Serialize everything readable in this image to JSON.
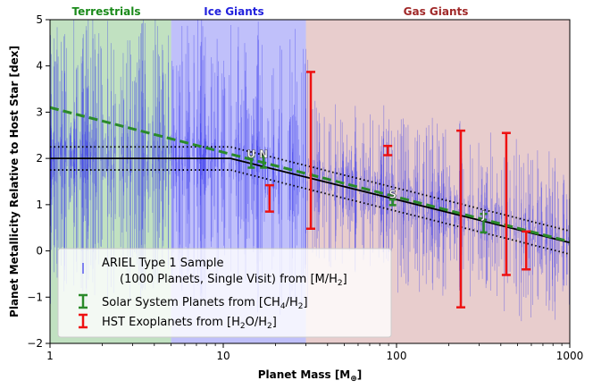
{
  "chart_data": {
    "type": "scatter",
    "xscale": "log",
    "xlim": [
      1,
      1000
    ],
    "ylim": [
      -2,
      5
    ],
    "xlabel_text": "Planet Mass [M",
    "xlabel_unit": "⊕",
    "xlabel_close": "]",
    "ylabel": "Planet Metallicity Relative to Host Star [dex]",
    "xticks": [
      {
        "value": 1,
        "label": "1"
      },
      {
        "value": 10,
        "label": "10"
      },
      {
        "value": 100,
        "label": "100"
      },
      {
        "value": 1000,
        "label": "1000"
      }
    ],
    "yticks": [
      {
        "value": -2,
        "label": "−2"
      },
      {
        "value": -1,
        "label": "−1"
      },
      {
        "value": 0,
        "label": "0"
      },
      {
        "value": 1,
        "label": "1"
      },
      {
        "value": 2,
        "label": "2"
      },
      {
        "value": 3,
        "label": "3"
      },
      {
        "value": 4,
        "label": "4"
      },
      {
        "value": 5,
        "label": "5"
      }
    ],
    "regions": [
      {
        "name": "Terrestrials",
        "x_range": [
          1,
          5
        ],
        "fill": "#8ec98e",
        "label_color": "#1a8a1a"
      },
      {
        "name": "Ice Giants",
        "x_range": [
          5,
          30
        ],
        "fill": "#8c8cf5",
        "label_color": "#2222dd"
      },
      {
        "name": "Gas Giants",
        "x_range": [
          30,
          1000
        ],
        "fill": "#d6a4a4",
        "label_color": "#a02828"
      }
    ],
    "trend_lines": [
      {
        "name": "Mass-metallicity model",
        "style": "solid",
        "color": "#000000",
        "points": [
          [
            1,
            2.0
          ],
          [
            11,
            2.0
          ],
          [
            1000,
            0.18
          ]
        ]
      },
      {
        "name": "Model upper bound",
        "style": "dotted",
        "color": "#000000",
        "points": [
          [
            1,
            2.25
          ],
          [
            11,
            2.25
          ],
          [
            1000,
            0.43
          ]
        ]
      },
      {
        "name": "Model lower bound",
        "style": "dotted",
        "color": "#000000",
        "points": [
          [
            1,
            1.75
          ],
          [
            11,
            1.75
          ],
          [
            1000,
            -0.07
          ]
        ]
      },
      {
        "name": "Solar System fit",
        "style": "dashed",
        "color": "#2a8a2a",
        "points": [
          [
            1,
            3.1
          ],
          [
            1000,
            0.2
          ]
        ]
      }
    ],
    "ariel_sample": {
      "name": "ARIEL Type 1 Sample",
      "count": 1000,
      "color": "#3333ee",
      "x_range": [
        1,
        1000
      ],
      "center_model": "Mass-metallicity model"
    },
    "series": [
      {
        "name": "Solar System Planets from [CH4/H2]",
        "color": "#2a8a2a",
        "points": [
          {
            "label": "U",
            "x": 14.5,
            "y": 1.92,
            "yerr": 0.12
          },
          {
            "label": "N",
            "x": 17.1,
            "y": 1.92,
            "yerr": 0.12
          },
          {
            "label": "S",
            "x": 95,
            "y": 1.05,
            "yerr": 0.06
          },
          {
            "label": "J",
            "x": 318,
            "y": 0.6,
            "yerr": 0.2
          }
        ]
      },
      {
        "name": "HST Exoplanets from [H2O/H2]",
        "color": "#ee1111",
        "points": [
          {
            "x": 18.5,
            "y_low": 0.85,
            "y_high": 1.42
          },
          {
            "x": 32,
            "y_low": 0.48,
            "y_high": 3.87
          },
          {
            "x": 89,
            "y_low": 2.07,
            "y_high": 2.27
          },
          {
            "x": 235,
            "y_low": -1.22,
            "y_high": 2.6
          },
          {
            "x": 430,
            "y_low": -0.52,
            "y_high": 2.55
          },
          {
            "x": 560,
            "y_low": -0.4,
            "y_high": 0.42
          }
        ]
      }
    ],
    "legend": {
      "position": "lower-left",
      "entries": [
        {
          "label": "ARIEL Type 1 Sample",
          "label_line2": "(1000 Planets, Single Visit) from [M/H",
          "sub": "2",
          "close": "]",
          "color": "#3333ee"
        },
        {
          "label": "Solar System Planets from [CH",
          "sub1": "4",
          "mid": "/H",
          "sub2": "2",
          "close": "]",
          "color": "#2a8a2a"
        },
        {
          "label": "HST Exoplanets from [H",
          "sub1": "2",
          "mid": "O/H",
          "sub2": "2",
          "close": "]",
          "color": "#ee1111"
        }
      ]
    }
  }
}
